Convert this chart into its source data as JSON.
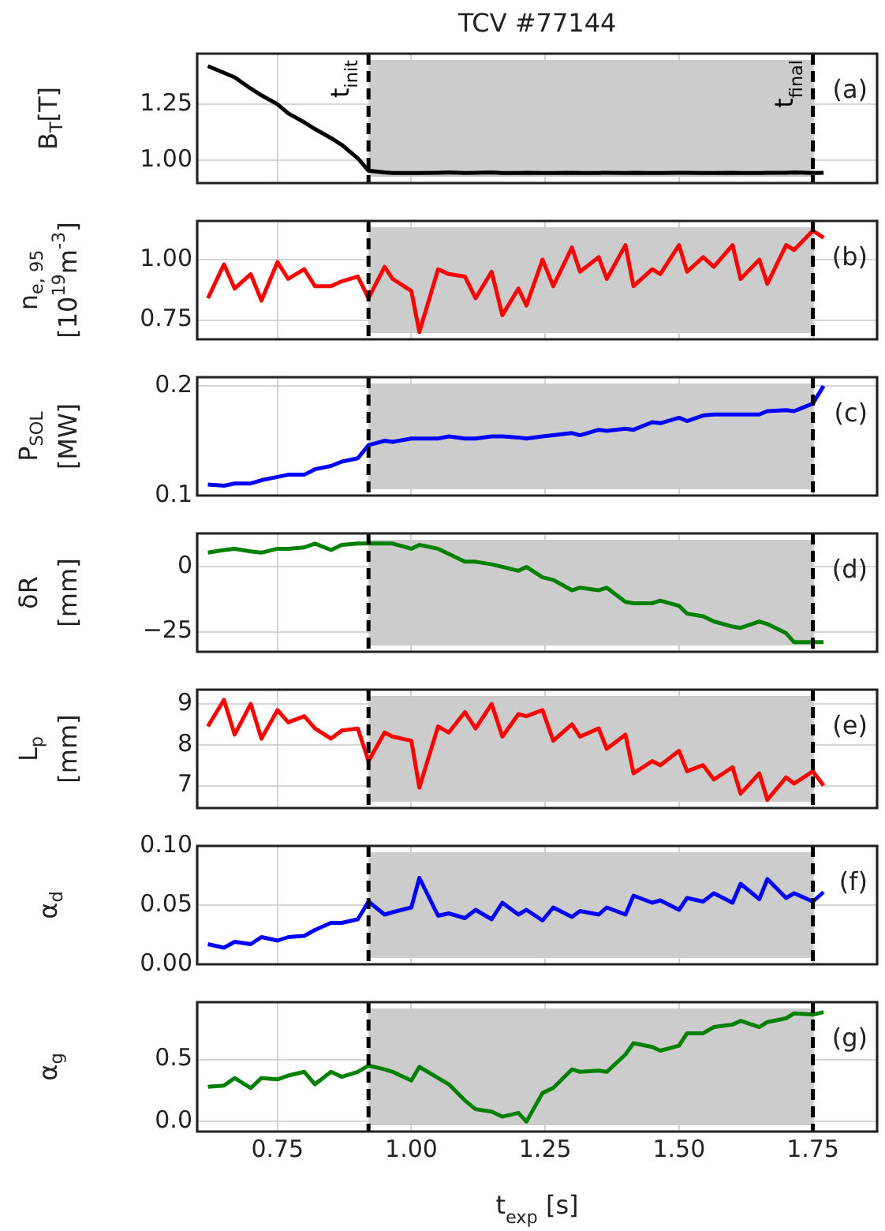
{
  "chart_data": [
    {
      "type": "line",
      "title": "TCV #77144",
      "ylabel": "B$_{T}$[T]",
      "xlim": [
        0.6,
        1.87
      ],
      "xticks": [
        {
          "value": 0.75,
          "label": null
        },
        {
          "value": 1,
          "label": null
        },
        {
          "value": 1.25,
          "label": null
        },
        {
          "value": 1.5,
          "label": null
        },
        {
          "value": 1.75,
          "label": null
        }
      ],
      "ylim": [
        0.9,
        1.475
      ],
      "yticks": [
        {
          "value": 1,
          "label": "1.00"
        },
        {
          "value": 1.25,
          "label": "1.25"
        }
      ],
      "grid": true,
      "tick_labels": "y",
      "x": [
        0.62,
        0.65,
        0.67,
        0.7,
        0.72,
        0.75,
        0.77,
        0.8,
        0.82,
        0.85,
        0.87,
        0.9,
        0.92,
        0.95,
        0.965,
        1.0,
        1.015,
        1.05,
        1.07,
        1.1,
        1.12,
        1.15,
        1.17,
        1.2,
        1.215,
        1.245,
        1.265,
        1.3,
        1.315,
        1.35,
        1.365,
        1.4,
        1.415,
        1.45,
        1.465,
        1.5,
        1.515,
        1.545,
        1.565,
        1.6,
        1.615,
        1.65,
        1.665,
        1.7,
        1.715,
        1.75,
        1.77
      ],
      "series": [
        {
          "color": "#000000",
          "values": [
            1.42,
            1.39,
            1.37,
            1.32,
            1.29,
            1.25,
            1.21,
            1.17,
            1.14,
            1.1,
            1.07,
            1.01,
            0.955,
            0.947,
            0.945,
            0.945,
            0.945,
            0.946,
            0.947,
            0.945,
            0.946,
            0.947,
            0.945,
            0.945,
            0.946,
            0.945,
            0.945,
            0.946,
            0.945,
            0.945,
            0.946,
            0.945,
            0.946,
            0.945,
            0.945,
            0.946,
            0.946,
            0.945,
            0.945,
            0.946,
            0.945,
            0.945,
            0.946,
            0.946,
            0.947,
            0.945,
            0.946
          ]
        }
      ],
      "bands": [
        {
          "axis": "x",
          "from": 0.92,
          "to": 1.75,
          "color": "#cccccc"
        }
      ],
      "ref_lines": [
        {
          "axis": "x",
          "value": 0.92,
          "label": "t$_{init}$",
          "color": "#000000",
          "line_style": "dashed"
        },
        {
          "axis": "x",
          "value": 1.75,
          "label": "t$_{final}$",
          "color": "#000000",
          "line_style": "dashed"
        }
      ],
      "annotations": [
        "(a)"
      ]
    },
    {
      "type": "line",
      "ylabel": "n$_{e, 95}$\n[10$^{19}$m$^{-3}$]",
      "xlim": [
        0.6,
        1.87
      ],
      "xticks": [
        {
          "value": 0.75,
          "label": null
        },
        {
          "value": 1,
          "label": null
        },
        {
          "value": 1.25,
          "label": null
        },
        {
          "value": 1.5,
          "label": null
        },
        {
          "value": 1.75,
          "label": null
        }
      ],
      "ylim": [
        0.67,
        1.16
      ],
      "yticks": [
        {
          "value": 0.75,
          "label": "0.75"
        },
        {
          "value": 1,
          "label": "1.00"
        }
      ],
      "grid": true,
      "tick_labels": "y",
      "x": [
        0.62,
        0.65,
        0.67,
        0.7,
        0.72,
        0.75,
        0.77,
        0.8,
        0.82,
        0.85,
        0.87,
        0.9,
        0.92,
        0.95,
        0.965,
        1.0,
        1.015,
        1.05,
        1.07,
        1.1,
        1.12,
        1.15,
        1.17,
        1.2,
        1.215,
        1.245,
        1.265,
        1.3,
        1.315,
        1.35,
        1.365,
        1.4,
        1.415,
        1.45,
        1.465,
        1.5,
        1.515,
        1.545,
        1.565,
        1.6,
        1.615,
        1.65,
        1.665,
        1.7,
        1.715,
        1.75,
        1.77
      ],
      "series": [
        {
          "color": "#ff0000",
          "values": [
            0.84,
            0.98,
            0.88,
            0.94,
            0.83,
            0.99,
            0.92,
            0.96,
            0.89,
            0.89,
            0.91,
            0.93,
            0.84,
            0.97,
            0.92,
            0.87,
            0.7,
            0.96,
            0.94,
            0.93,
            0.84,
            0.95,
            0.77,
            0.88,
            0.81,
            1.0,
            0.89,
            1.05,
            0.95,
            1.01,
            0.92,
            1.06,
            0.89,
            0.96,
            0.94,
            1.06,
            0.95,
            1.01,
            0.97,
            1.06,
            0.92,
            1.0,
            0.9,
            1.06,
            1.04,
            1.12,
            1.09
          ]
        }
      ],
      "bands": [
        {
          "axis": "x",
          "from": 0.92,
          "to": 1.75,
          "color": "#cccccc"
        }
      ],
      "ref_lines": [
        {
          "axis": "x",
          "value": 0.92,
          "color": "#000000",
          "line_style": "dashed"
        },
        {
          "axis": "x",
          "value": 1.75,
          "color": "#000000",
          "line_style": "dashed"
        }
      ],
      "annotations": [
        "(b)"
      ]
    },
    {
      "type": "line",
      "ylabel": "P$_{SOL}$\n[MW]",
      "xlim": [
        0.6,
        1.87
      ],
      "xticks": [
        {
          "value": 0.75,
          "label": null
        },
        {
          "value": 1,
          "label": null
        },
        {
          "value": 1.25,
          "label": null
        },
        {
          "value": 1.5,
          "label": null
        },
        {
          "value": 1.75,
          "label": null
        }
      ],
      "ylim": [
        0.1,
        0.208
      ],
      "yticks": [
        0.1,
        0.2
      ],
      "grid": true,
      "tick_labels": "y",
      "x": [
        0.62,
        0.65,
        0.67,
        0.7,
        0.72,
        0.75,
        0.77,
        0.8,
        0.82,
        0.85,
        0.87,
        0.9,
        0.92,
        0.95,
        0.965,
        1.0,
        1.015,
        1.05,
        1.07,
        1.1,
        1.12,
        1.15,
        1.17,
        1.2,
        1.215,
        1.245,
        1.265,
        1.3,
        1.315,
        1.35,
        1.365,
        1.4,
        1.415,
        1.45,
        1.465,
        1.5,
        1.515,
        1.545,
        1.565,
        1.6,
        1.615,
        1.65,
        1.665,
        1.7,
        1.715,
        1.75,
        1.77
      ],
      "series": [
        {
          "color": "#0000ff",
          "values": [
            0.11,
            0.109,
            0.111,
            0.111,
            0.114,
            0.117,
            0.119,
            0.119,
            0.124,
            0.127,
            0.131,
            0.134,
            0.146,
            0.15,
            0.149,
            0.152,
            0.152,
            0.152,
            0.154,
            0.152,
            0.152,
            0.154,
            0.154,
            0.153,
            0.152,
            0.154,
            0.155,
            0.157,
            0.155,
            0.16,
            0.159,
            0.161,
            0.16,
            0.167,
            0.166,
            0.171,
            0.168,
            0.173,
            0.174,
            0.174,
            0.174,
            0.174,
            0.177,
            0.178,
            0.177,
            0.184,
            0.2
          ]
        }
      ],
      "bands": [
        {
          "axis": "x",
          "from": 0.92,
          "to": 1.75,
          "color": "#cccccc"
        }
      ],
      "ref_lines": [
        {
          "axis": "x",
          "value": 0.92,
          "color": "#000000",
          "line_style": "dashed"
        },
        {
          "axis": "x",
          "value": 1.75,
          "color": "#000000",
          "line_style": "dashed"
        }
      ],
      "annotations": [
        "(c)"
      ]
    },
    {
      "type": "line",
      "ylabel": "δR\n[mm]",
      "xlim": [
        0.6,
        1.87
      ],
      "xticks": [
        {
          "value": 0.75,
          "label": null
        },
        {
          "value": 1,
          "label": null
        },
        {
          "value": 1.25,
          "label": null
        },
        {
          "value": 1.5,
          "label": null
        },
        {
          "value": 1.75,
          "label": null
        }
      ],
      "ylim": [
        -32.7,
        12.9
      ],
      "yticks": [
        {
          "value": -25,
          "label": "−25"
        },
        0
      ],
      "grid": true,
      "tick_labels": "y",
      "x": [
        0.62,
        0.65,
        0.67,
        0.7,
        0.72,
        0.75,
        0.77,
        0.8,
        0.82,
        0.85,
        0.87,
        0.9,
        0.92,
        0.95,
        0.965,
        1.0,
        1.015,
        1.05,
        1.07,
        1.1,
        1.12,
        1.15,
        1.17,
        1.2,
        1.215,
        1.245,
        1.265,
        1.3,
        1.315,
        1.35,
        1.365,
        1.4,
        1.415,
        1.45,
        1.465,
        1.5,
        1.515,
        1.545,
        1.565,
        1.6,
        1.615,
        1.65,
        1.665,
        1.7,
        1.715,
        1.75,
        1.77
      ],
      "series": [
        {
          "color": "#008000",
          "values": [
            5.5,
            6.5,
            7,
            6,
            5.5,
            7,
            7,
            7.5,
            9,
            6.5,
            8.5,
            9,
            9,
            9,
            9,
            7,
            8.5,
            7,
            5,
            2,
            2,
            1,
            0,
            -1.5,
            0,
            -4,
            -5,
            -9,
            -8,
            -9,
            -8,
            -13.5,
            -14,
            -14,
            -13,
            -15,
            -18,
            -19,
            -21,
            -23,
            -23.5,
            -21,
            -22,
            -25.5,
            -29,
            -29,
            -29
          ]
        }
      ],
      "bands": [
        {
          "axis": "x",
          "from": 0.92,
          "to": 1.75,
          "color": "#cccccc"
        }
      ],
      "ref_lines": [
        {
          "axis": "x",
          "value": 0.92,
          "color": "#000000",
          "line_style": "dashed"
        },
        {
          "axis": "x",
          "value": 1.75,
          "color": "#000000",
          "line_style": "dashed"
        }
      ],
      "annotations": [
        "(d)"
      ]
    },
    {
      "type": "line",
      "ylabel": "L$_{p}$\n[mm]",
      "xlim": [
        0.6,
        1.87
      ],
      "xticks": [
        {
          "value": 0.75,
          "label": null
        },
        {
          "value": 1,
          "label": null
        },
        {
          "value": 1.25,
          "label": null
        },
        {
          "value": 1.5,
          "label": null
        },
        {
          "value": 1.75,
          "label": null
        }
      ],
      "ylim": [
        6.45,
        9.35
      ],
      "yticks": [
        7,
        8,
        9
      ],
      "grid": true,
      "tick_labels": "y",
      "x": [
        0.62,
        0.65,
        0.67,
        0.7,
        0.72,
        0.75,
        0.77,
        0.8,
        0.82,
        0.85,
        0.87,
        0.9,
        0.92,
        0.95,
        0.965,
        1.0,
        1.015,
        1.05,
        1.07,
        1.1,
        1.12,
        1.15,
        1.17,
        1.2,
        1.215,
        1.245,
        1.265,
        1.3,
        1.315,
        1.35,
        1.365,
        1.4,
        1.415,
        1.45,
        1.465,
        1.5,
        1.515,
        1.545,
        1.565,
        1.6,
        1.615,
        1.65,
        1.665,
        1.7,
        1.715,
        1.75,
        1.77
      ],
      "series": [
        {
          "color": "#ff0000",
          "values": [
            8.45,
            9.1,
            8.25,
            9.0,
            8.15,
            8.85,
            8.55,
            8.7,
            8.4,
            8.15,
            8.35,
            8.4,
            7.6,
            8.3,
            8.2,
            8.1,
            6.95,
            8.45,
            8.3,
            8.8,
            8.4,
            9.0,
            8.2,
            8.75,
            8.7,
            8.85,
            8.1,
            8.5,
            8.2,
            8.4,
            7.9,
            8.25,
            7.3,
            7.6,
            7.5,
            7.85,
            7.35,
            7.5,
            7.15,
            7.45,
            6.8,
            7.3,
            6.65,
            7.2,
            7.05,
            7.35,
            7.0
          ]
        }
      ],
      "bands": [
        {
          "axis": "x",
          "from": 0.92,
          "to": 1.75,
          "color": "#cccccc"
        }
      ],
      "ref_lines": [
        {
          "axis": "x",
          "value": 0.92,
          "color": "#000000",
          "line_style": "dashed"
        },
        {
          "axis": "x",
          "value": 1.75,
          "color": "#000000",
          "line_style": "dashed"
        }
      ],
      "annotations": [
        "(e)"
      ]
    },
    {
      "type": "line",
      "ylabel": "α$_{d}$",
      "xlim": [
        0.6,
        1.87
      ],
      "xticks": [
        {
          "value": 0.75,
          "label": null
        },
        {
          "value": 1,
          "label": null
        },
        {
          "value": 1.25,
          "label": null
        },
        {
          "value": 1.5,
          "label": null
        },
        {
          "value": 1.75,
          "label": null
        }
      ],
      "ylim": [
        0,
        0.1
      ],
      "yticks": [
        {
          "value": 0,
          "label": "0.00"
        },
        {
          "value": 0.05,
          "label": "0.05"
        },
        {
          "value": 0.1,
          "label": "0.10"
        }
      ],
      "grid": true,
      "tick_labels": "y",
      "x": [
        0.62,
        0.65,
        0.67,
        0.7,
        0.72,
        0.75,
        0.77,
        0.8,
        0.82,
        0.85,
        0.87,
        0.9,
        0.92,
        0.95,
        0.965,
        1.0,
        1.015,
        1.05,
        1.07,
        1.1,
        1.12,
        1.15,
        1.17,
        1.2,
        1.215,
        1.245,
        1.265,
        1.3,
        1.315,
        1.35,
        1.365,
        1.4,
        1.415,
        1.45,
        1.465,
        1.5,
        1.515,
        1.545,
        1.565,
        1.6,
        1.615,
        1.65,
        1.665,
        1.7,
        1.715,
        1.75,
        1.77
      ],
      "series": [
        {
          "color": "#0000ff",
          "values": [
            0.017,
            0.014,
            0.019,
            0.017,
            0.023,
            0.02,
            0.023,
            0.024,
            0.029,
            0.035,
            0.035,
            0.038,
            0.053,
            0.042,
            0.044,
            0.048,
            0.073,
            0.041,
            0.043,
            0.039,
            0.046,
            0.038,
            0.052,
            0.042,
            0.046,
            0.037,
            0.048,
            0.04,
            0.045,
            0.042,
            0.048,
            0.042,
            0.058,
            0.052,
            0.054,
            0.046,
            0.056,
            0.053,
            0.06,
            0.052,
            0.068,
            0.055,
            0.072,
            0.056,
            0.06,
            0.053,
            0.061
          ]
        }
      ],
      "bands": [
        {
          "axis": "x",
          "from": 0.92,
          "to": 1.75,
          "color": "#cccccc"
        }
      ],
      "ref_lines": [
        {
          "axis": "x",
          "value": 0.92,
          "color": "#000000",
          "line_style": "dashed"
        },
        {
          "axis": "x",
          "value": 1.75,
          "color": "#000000",
          "line_style": "dashed"
        }
      ],
      "annotations": [
        "(f)"
      ]
    },
    {
      "type": "line",
      "ylabel": "α$_{g}$",
      "xlabel": "t$_{exp}$ [s]",
      "xlim": [
        0.6,
        1.87
      ],
      "xticks": [
        {
          "value": 0.75,
          "label": "0.75"
        },
        {
          "value": 1,
          "label": "1.00"
        },
        {
          "value": 1.25,
          "label": "1.25"
        },
        {
          "value": 1.5,
          "label": "1.50"
        },
        {
          "value": 1.75,
          "label": "1.75"
        }
      ],
      "ylim": [
        -0.08,
        0.96
      ],
      "yticks": [
        {
          "value": 0,
          "label": "0.0"
        },
        {
          "value": 0.5,
          "label": "0.5"
        }
      ],
      "grid": true,
      "x": [
        0.62,
        0.65,
        0.67,
        0.7,
        0.72,
        0.75,
        0.77,
        0.8,
        0.82,
        0.85,
        0.87,
        0.9,
        0.92,
        0.95,
        0.965,
        1.0,
        1.015,
        1.05,
        1.07,
        1.1,
        1.12,
        1.15,
        1.17,
        1.2,
        1.215,
        1.245,
        1.265,
        1.3,
        1.315,
        1.35,
        1.365,
        1.4,
        1.415,
        1.45,
        1.465,
        1.5,
        1.515,
        1.545,
        1.565,
        1.6,
        1.615,
        1.65,
        1.665,
        1.7,
        1.715,
        1.75,
        1.77
      ],
      "series": [
        {
          "color": "#008000",
          "values": [
            0.28,
            0.29,
            0.35,
            0.27,
            0.35,
            0.34,
            0.37,
            0.4,
            0.3,
            0.4,
            0.36,
            0.4,
            0.45,
            0.42,
            0.4,
            0.33,
            0.44,
            0.35,
            0.3,
            0.17,
            0.1,
            0.08,
            0.04,
            0.07,
            0.0,
            0.23,
            0.27,
            0.42,
            0.4,
            0.41,
            0.4,
            0.54,
            0.63,
            0.6,
            0.57,
            0.61,
            0.71,
            0.71,
            0.76,
            0.78,
            0.81,
            0.76,
            0.8,
            0.83,
            0.87,
            0.86,
            0.88
          ]
        }
      ],
      "bands": [
        {
          "axis": "x",
          "from": 0.92,
          "to": 1.75,
          "color": "#cccccc"
        }
      ],
      "ref_lines": [
        {
          "axis": "x",
          "value": 0.92,
          "color": "#000000",
          "line_style": "dashed"
        },
        {
          "axis": "x",
          "value": 1.75,
          "color": "#000000",
          "line_style": "dashed"
        }
      ],
      "annotations": [
        "(g)"
      ]
    }
  ]
}
